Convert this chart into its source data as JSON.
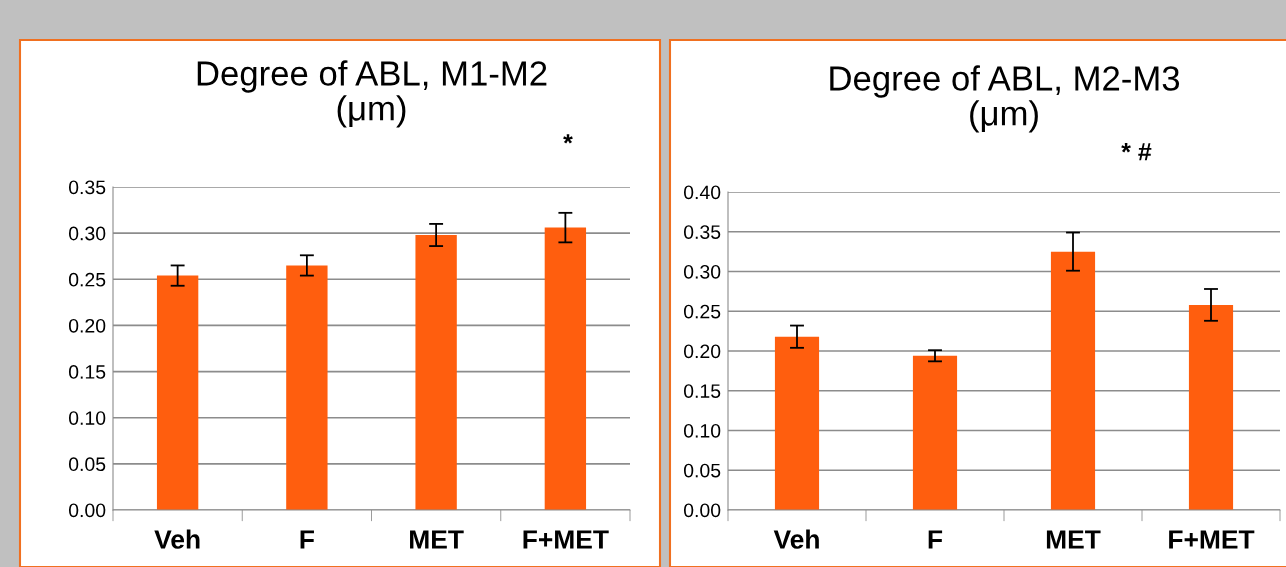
{
  "chart_data": [
    {
      "type": "bar",
      "title": "Degree of ABL, M1-M2\n(μm)",
      "categories": [
        "Veh",
        "F",
        "MET",
        "F+MET"
      ],
      "values": [
        0.254,
        0.265,
        0.298,
        0.306
      ],
      "errors": [
        0.011,
        0.011,
        0.012,
        0.016
      ],
      "color": "#ff5e0e",
      "ylim": [
        0,
        0.35
      ],
      "yticks": [
        {
          "value": 0,
          "label": "0.00"
        },
        {
          "value": 0.05,
          "label": "0.05"
        },
        {
          "value": 0.1,
          "label": "0.10"
        },
        {
          "value": 0.15,
          "label": "0.15"
        },
        {
          "value": 0.2,
          "label": "0.20"
        },
        {
          "value": 0.25,
          "label": "0.25"
        },
        {
          "value": 0.3,
          "label": "0.30"
        },
        {
          "value": 0.35,
          "label": "0.35"
        }
      ],
      "grid": "y",
      "annotations": [
        "*"
      ]
    },
    {
      "type": "bar",
      "title": "Degree of ABL, M2-M3\n(μm)",
      "categories": [
        "Veh",
        "F",
        "MET",
        "F+MET"
      ],
      "values": [
        0.218,
        0.194,
        0.325,
        0.258
      ],
      "errors": [
        0.014,
        0.007,
        0.024,
        0.02
      ],
      "color": "#ff5e0e",
      "ylim": [
        0,
        0.4
      ],
      "yticks": [
        {
          "value": 0,
          "label": "0.00"
        },
        {
          "value": 0.05,
          "label": "0.05"
        },
        {
          "value": 0.1,
          "label": "0.10"
        },
        {
          "value": 0.15,
          "label": "0.15"
        },
        {
          "value": 0.2,
          "label": "0.20"
        },
        {
          "value": 0.25,
          "label": "0.25"
        },
        {
          "value": 0.3,
          "label": "0.30"
        },
        {
          "value": 0.35,
          "label": "0.35"
        },
        {
          "value": 0.4,
          "label": "0.40"
        }
      ],
      "grid": "y",
      "annotations": [
        "* #"
      ]
    }
  ]
}
